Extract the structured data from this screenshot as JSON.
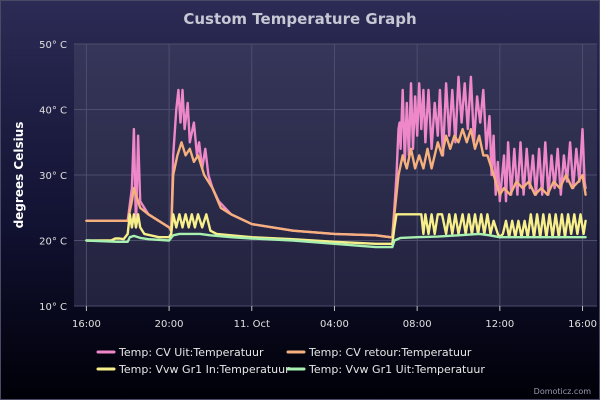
{
  "chart_data": {
    "type": "line",
    "title": "Custom Temperature Graph",
    "xlabel": "",
    "ylabel": "degrees Celsius",
    "x_unit": "hours from 16:00 (Oct 10)",
    "x_ticks": [
      {
        "x": 0,
        "label": "16:00"
      },
      {
        "x": 4,
        "label": "20:00"
      },
      {
        "x": 8,
        "label": "11. Oct"
      },
      {
        "x": 12,
        "label": "04:00"
      },
      {
        "x": 16,
        "label": "08:00"
      },
      {
        "x": 20,
        "label": "12:00"
      },
      {
        "x": 24,
        "label": "16:00"
      }
    ],
    "y_ticks": [
      {
        "y": 10,
        "label": "10° C"
      },
      {
        "y": 20,
        "label": "20° C"
      },
      {
        "y": 30,
        "label": "30° C"
      },
      {
        "y": 40,
        "label": "40° C"
      },
      {
        "y": 50,
        "label": "50° C"
      }
    ],
    "xlim": [
      -0.6,
      24.7
    ],
    "ylim": [
      10,
      50
    ],
    "grid": true,
    "legend_position": "bottom",
    "series": [
      {
        "name": "Temp: CV Uit:Temperatuur",
        "color": "#ee88c8",
        "points": [
          [
            0,
            23
          ],
          [
            2,
            23
          ],
          [
            2.2,
            28
          ],
          [
            2.3,
            37
          ],
          [
            2.4,
            22
          ],
          [
            2.5,
            36
          ],
          [
            2.6,
            26
          ],
          [
            3,
            24
          ],
          [
            4,
            22
          ],
          [
            4.1,
            21.5
          ],
          [
            4.2,
            33
          ],
          [
            4.35,
            40
          ],
          [
            4.45,
            43
          ],
          [
            4.55,
            38
          ],
          [
            4.65,
            43
          ],
          [
            4.75,
            37
          ],
          [
            4.9,
            41
          ],
          [
            5,
            35
          ],
          [
            5.2,
            38
          ],
          [
            5.35,
            33
          ],
          [
            5.45,
            35
          ],
          [
            5.6,
            31
          ],
          [
            5.75,
            34
          ],
          [
            5.9,
            30
          ],
          [
            6.1,
            28
          ],
          [
            6.4,
            26
          ],
          [
            7,
            24
          ],
          [
            8,
            22.5
          ],
          [
            10,
            21.5
          ],
          [
            12,
            21
          ],
          [
            14,
            20.8
          ],
          [
            14.7,
            20.5
          ],
          [
            14.8,
            20.5
          ],
          [
            14.9,
            25
          ],
          [
            15,
            30
          ],
          [
            15.1,
            37
          ],
          [
            15.15,
            38
          ],
          [
            15.2,
            34
          ],
          [
            15.3,
            43
          ],
          [
            15.4,
            32
          ],
          [
            15.5,
            41
          ],
          [
            15.6,
            33
          ],
          [
            15.7,
            44
          ],
          [
            15.8,
            34
          ],
          [
            15.9,
            42
          ],
          [
            16,
            36
          ],
          [
            16.1,
            44
          ],
          [
            16.2,
            37
          ],
          [
            16.3,
            43
          ],
          [
            16.4,
            35
          ],
          [
            16.55,
            43
          ],
          [
            16.7,
            34
          ],
          [
            16.85,
            41
          ],
          [
            17,
            36
          ],
          [
            17.1,
            43
          ],
          [
            17.25,
            33
          ],
          [
            17.4,
            44
          ],
          [
            17.55,
            36
          ],
          [
            17.7,
            43
          ],
          [
            17.85,
            35
          ],
          [
            18,
            45
          ],
          [
            18.15,
            38
          ],
          [
            18.3,
            44
          ],
          [
            18.45,
            37
          ],
          [
            18.6,
            45
          ],
          [
            18.75,
            35
          ],
          [
            18.9,
            42
          ],
          [
            19.05,
            38
          ],
          [
            19.2,
            43
          ],
          [
            19.35,
            34
          ],
          [
            19.5,
            39
          ],
          [
            19.6,
            30
          ],
          [
            19.7,
            36
          ],
          [
            19.8,
            27
          ],
          [
            19.9,
            32
          ],
          [
            20,
            26
          ],
          [
            20.2,
            33
          ],
          [
            20.3,
            26
          ],
          [
            20.4,
            35
          ],
          [
            20.55,
            27
          ],
          [
            20.7,
            34
          ],
          [
            20.85,
            27
          ],
          [
            21,
            35
          ],
          [
            21.15,
            27
          ],
          [
            21.3,
            34
          ],
          [
            21.45,
            28
          ],
          [
            21.6,
            33
          ],
          [
            21.75,
            27
          ],
          [
            21.9,
            34
          ],
          [
            22.05,
            27
          ],
          [
            22.2,
            35
          ],
          [
            22.35,
            27
          ],
          [
            22.5,
            33
          ],
          [
            22.65,
            28
          ],
          [
            22.8,
            34
          ],
          [
            22.95,
            27
          ],
          [
            23.1,
            33
          ],
          [
            23.25,
            29
          ],
          [
            23.4,
            35
          ],
          [
            23.55,
            28
          ],
          [
            23.7,
            34
          ],
          [
            23.85,
            29
          ],
          [
            24,
            37
          ],
          [
            24.1,
            29
          ],
          [
            24.15,
            28
          ]
        ]
      },
      {
        "name": "Temp: CV retour:Temperatuur",
        "color": "#f5b07e",
        "points": [
          [
            0,
            23
          ],
          [
            2,
            23
          ],
          [
            2.2,
            26
          ],
          [
            2.3,
            28
          ],
          [
            2.4,
            27
          ],
          [
            2.6,
            25
          ],
          [
            3,
            24
          ],
          [
            4,
            22
          ],
          [
            4.1,
            21.5
          ],
          [
            4.2,
            30
          ],
          [
            4.4,
            33
          ],
          [
            4.6,
            35
          ],
          [
            4.8,
            33
          ],
          [
            5,
            34
          ],
          [
            5.2,
            32
          ],
          [
            5.4,
            33
          ],
          [
            5.7,
            30
          ],
          [
            6.1,
            28
          ],
          [
            6.5,
            25
          ],
          [
            7,
            24
          ],
          [
            8,
            22.5
          ],
          [
            10,
            21.5
          ],
          [
            12,
            21
          ],
          [
            14,
            20.8
          ],
          [
            14.7,
            20.5
          ],
          [
            14.8,
            20.5
          ],
          [
            14.9,
            24
          ],
          [
            15.1,
            30
          ],
          [
            15.3,
            33
          ],
          [
            15.5,
            31
          ],
          [
            15.7,
            34
          ],
          [
            15.9,
            31
          ],
          [
            16.1,
            33
          ],
          [
            16.3,
            31
          ],
          [
            16.5,
            34
          ],
          [
            16.7,
            31
          ],
          [
            17,
            35
          ],
          [
            17.2,
            33
          ],
          [
            17.4,
            36
          ],
          [
            17.6,
            34
          ],
          [
            17.8,
            36
          ],
          [
            18,
            35
          ],
          [
            18.2,
            37
          ],
          [
            18.4,
            35
          ],
          [
            18.6,
            37
          ],
          [
            18.8,
            34
          ],
          [
            19,
            36
          ],
          [
            19.2,
            33
          ],
          [
            19.4,
            33
          ],
          [
            19.6,
            31
          ],
          [
            19.8,
            29
          ],
          [
            20,
            27
          ],
          [
            20.2,
            28
          ],
          [
            20.5,
            27
          ],
          [
            20.8,
            29
          ],
          [
            21.1,
            28
          ],
          [
            21.4,
            29
          ],
          [
            21.7,
            27
          ],
          [
            22,
            28
          ],
          [
            22.3,
            27
          ],
          [
            22.6,
            29
          ],
          [
            22.9,
            28
          ],
          [
            23.2,
            30
          ],
          [
            23.5,
            28
          ],
          [
            23.8,
            29
          ],
          [
            24,
            30
          ],
          [
            24.15,
            27
          ]
        ]
      },
      {
        "name": "Temp: Vvw Gr1 In:Temperatuur",
        "color": "#f7f08a",
        "points": [
          [
            0,
            20
          ],
          [
            1.2,
            20
          ],
          [
            1.4,
            20.3
          ],
          [
            1.6,
            20.3
          ],
          [
            1.8,
            20.2
          ],
          [
            2,
            21
          ],
          [
            2.1,
            24
          ],
          [
            2.2,
            22
          ],
          [
            2.3,
            24
          ],
          [
            2.4,
            22
          ],
          [
            2.5,
            24
          ],
          [
            2.6,
            22
          ],
          [
            2.8,
            21
          ],
          [
            3.5,
            20.5
          ],
          [
            4,
            20.5
          ],
          [
            4.1,
            21
          ],
          [
            4.2,
            24
          ],
          [
            4.35,
            22
          ],
          [
            4.5,
            24
          ],
          [
            4.65,
            22
          ],
          [
            4.8,
            24
          ],
          [
            4.95,
            22
          ],
          [
            5.1,
            24
          ],
          [
            5.25,
            22
          ],
          [
            5.4,
            24
          ],
          [
            5.6,
            22
          ],
          [
            5.8,
            24
          ],
          [
            6,
            21.5
          ],
          [
            6.3,
            21
          ],
          [
            7,
            20.8
          ],
          [
            8,
            20.5
          ],
          [
            10,
            20.2
          ],
          [
            12,
            19.8
          ],
          [
            14,
            19.5
          ],
          [
            14.8,
            19.5
          ],
          [
            14.9,
            22
          ],
          [
            15,
            24
          ],
          [
            15.3,
            24
          ],
          [
            15.6,
            24
          ],
          [
            15.9,
            24
          ],
          [
            16.2,
            24
          ],
          [
            16.3,
            21
          ],
          [
            16.4,
            24
          ],
          [
            16.55,
            21
          ],
          [
            16.7,
            24
          ],
          [
            16.85,
            21
          ],
          [
            17,
            24
          ],
          [
            17.2,
            24
          ],
          [
            17.4,
            21
          ],
          [
            17.55,
            24
          ],
          [
            17.7,
            21
          ],
          [
            17.85,
            24
          ],
          [
            18,
            21
          ],
          [
            18.2,
            24
          ],
          [
            18.35,
            21
          ],
          [
            18.5,
            24
          ],
          [
            18.65,
            21
          ],
          [
            18.8,
            24
          ],
          [
            18.95,
            21
          ],
          [
            19.1,
            24
          ],
          [
            19.25,
            21
          ],
          [
            19.4,
            24
          ],
          [
            19.55,
            21
          ],
          [
            19.7,
            23
          ],
          [
            19.9,
            21
          ],
          [
            20,
            20.5
          ],
          [
            20.15,
            21
          ],
          [
            20.3,
            23
          ],
          [
            20.45,
            20.5
          ],
          [
            20.6,
            23
          ],
          [
            20.75,
            20.5
          ],
          [
            20.9,
            23
          ],
          [
            21.05,
            20.5
          ],
          [
            21.2,
            23
          ],
          [
            21.35,
            20.5
          ],
          [
            21.5,
            24
          ],
          [
            21.65,
            20.5
          ],
          [
            21.8,
            24
          ],
          [
            21.95,
            20.5
          ],
          [
            22.1,
            24
          ],
          [
            22.25,
            20.5
          ],
          [
            22.4,
            24
          ],
          [
            22.55,
            20.5
          ],
          [
            22.7,
            24
          ],
          [
            22.85,
            20.5
          ],
          [
            23,
            24
          ],
          [
            23.15,
            20.5
          ],
          [
            23.3,
            24
          ],
          [
            23.45,
            21
          ],
          [
            23.6,
            24
          ],
          [
            23.75,
            21
          ],
          [
            23.9,
            24
          ],
          [
            24.05,
            21
          ],
          [
            24.15,
            23
          ]
        ]
      },
      {
        "name": "Temp: Vvw Gr1 Uit:Temperatuur",
        "color": "#a8f0b0",
        "points": [
          [
            0,
            20
          ],
          [
            1.5,
            19.8
          ],
          [
            2,
            19.8
          ],
          [
            2.1,
            20.5
          ],
          [
            2.3,
            20.7
          ],
          [
            2.6,
            20.4
          ],
          [
            3,
            20.2
          ],
          [
            4,
            20
          ],
          [
            4.2,
            20.8
          ],
          [
            4.5,
            21
          ],
          [
            5,
            21
          ],
          [
            5.5,
            21
          ],
          [
            6,
            20.8
          ],
          [
            7,
            20.5
          ],
          [
            8,
            20.3
          ],
          [
            10,
            20
          ],
          [
            12,
            19.5
          ],
          [
            14,
            19
          ],
          [
            14.8,
            19
          ],
          [
            14.9,
            20
          ],
          [
            15.2,
            20.4
          ],
          [
            16,
            20.5
          ],
          [
            17,
            20.6
          ],
          [
            18,
            20.8
          ],
          [
            19,
            21
          ],
          [
            19.5,
            20.8
          ],
          [
            20,
            20.5
          ],
          [
            21,
            20.5
          ],
          [
            22,
            20.5
          ],
          [
            23,
            20.5
          ],
          [
            24,
            20.5
          ],
          [
            24.15,
            20.5
          ]
        ]
      }
    ]
  },
  "credit": "Domoticz.com"
}
